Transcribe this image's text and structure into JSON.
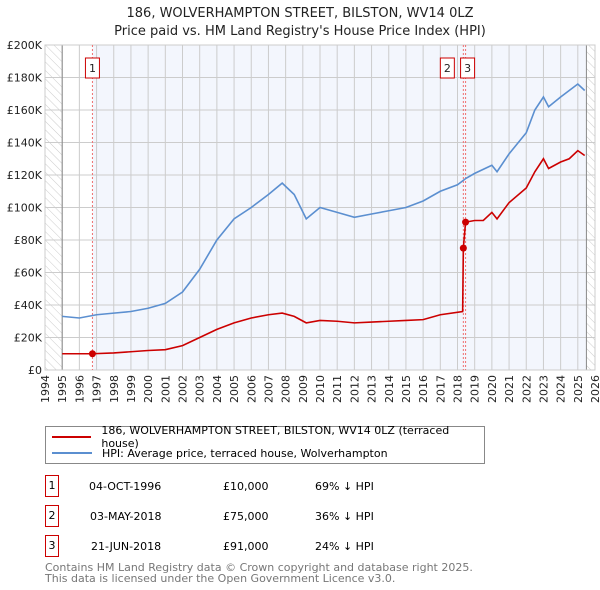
{
  "chart_data": {
    "type": "line",
    "title": "186, WOLVERHAMPTON STREET, BILSTON, WV14 0LZ",
    "subtitle": "Price paid vs. HM Land Registry's House Price Index (HPI)",
    "xlim": [
      1994,
      2026
    ],
    "ylim": [
      0,
      200000
    ],
    "x_ticks": [
      "1994",
      "1995",
      "1996",
      "1997",
      "1998",
      "1999",
      "2000",
      "2001",
      "2002",
      "2003",
      "2004",
      "2005",
      "2006",
      "2007",
      "2008",
      "2009",
      "2010",
      "2011",
      "2012",
      "2013",
      "2014",
      "2015",
      "2016",
      "2017",
      "2018",
      "2019",
      "2020",
      "2021",
      "2022",
      "2023",
      "2024",
      "2025",
      "2026"
    ],
    "y_ticks": [
      {
        "v": 0,
        "label": "£0"
      },
      {
        "v": 20000,
        "label": "£20K"
      },
      {
        "v": 40000,
        "label": "£40K"
      },
      {
        "v": 60000,
        "label": "£60K"
      },
      {
        "v": 80000,
        "label": "£80K"
      },
      {
        "v": 100000,
        "label": "£100K"
      },
      {
        "v": 120000,
        "label": "£120K"
      },
      {
        "v": 140000,
        "label": "£140K"
      },
      {
        "v": 160000,
        "label": "£160K"
      },
      {
        "v": 180000,
        "label": "£180K"
      },
      {
        "v": 200000,
        "label": "£200K"
      }
    ],
    "series": [
      {
        "name": "186, WOLVERHAMPTON STREET, BILSTON, WV14 0LZ (terraced house)",
        "color": "#cc0000",
        "x": [
          1995,
          1996.76,
          1998,
          2000,
          2001,
          2002,
          2003,
          2004,
          2005,
          2006,
          2007,
          2007.8,
          2008.5,
          2009.2,
          2010,
          2011,
          2012,
          2013,
          2014,
          2015,
          2016,
          2017,
          2018.3,
          2018.34,
          2018.47,
          2019,
          2019.5,
          2020,
          2020.3,
          2021,
          2022,
          2022.5,
          2023,
          2023.3,
          2024,
          2024.5,
          2025,
          2025.4
        ],
        "y": [
          10000,
          10000,
          10500,
          12000,
          12500,
          15000,
          20000,
          25000,
          29000,
          32000,
          34000,
          35000,
          33000,
          29000,
          30500,
          30000,
          29000,
          29500,
          30000,
          30500,
          31000,
          34000,
          36000,
          75000,
          91000,
          92000,
          92000,
          97000,
          93000,
          103000,
          112000,
          122000,
          130000,
          124000,
          128000,
          130000,
          135000,
          132000
        ]
      },
      {
        "name": "HPI: Average price, terraced house, Wolverhampton",
        "color": "#5b8fd0",
        "x": [
          1995,
          1996,
          1997,
          1998,
          1999,
          2000,
          2001,
          2002,
          2003,
          2004,
          2005,
          2006,
          2007,
          2007.8,
          2008.5,
          2009.2,
          2010,
          2011,
          2012,
          2013,
          2014,
          2015,
          2016,
          2017,
          2018,
          2018.5,
          2019,
          2020,
          2020.3,
          2021,
          2022,
          2022.5,
          2023,
          2023.3,
          2024,
          2024.5,
          2025,
          2025.4
        ],
        "y": [
          33000,
          32000,
          34000,
          35000,
          36000,
          38000,
          41000,
          48000,
          62000,
          80000,
          93000,
          100000,
          108000,
          115000,
          108000,
          93000,
          100000,
          97000,
          94000,
          96000,
          98000,
          100000,
          104000,
          110000,
          114000,
          118000,
          121000,
          126000,
          122000,
          133000,
          146000,
          160000,
          168000,
          162000,
          168000,
          172000,
          176000,
          172000
        ]
      }
    ],
    "sales": [
      {
        "num": "1",
        "date": "04-OCT-1996",
        "x": 1996.76,
        "price": "£10,000",
        "value": 10000,
        "hpi": "69% ↓ HPI"
      },
      {
        "num": "2",
        "date": "03-MAY-2018",
        "x": 2018.34,
        "price": "£75,000",
        "value": 75000,
        "hpi": "36% ↓ HPI"
      },
      {
        "num": "3",
        "date": "21-JUN-2018",
        "x": 2018.47,
        "price": "£91,000",
        "value": 91000,
        "hpi": "24% ↓ HPI"
      }
    ],
    "data_end": 2025.5
  },
  "footer": {
    "line1": "Contains HM Land Registry data © Crown copyright and database right 2025.",
    "line2": "This data is licensed under the Open Government Licence v3.0."
  }
}
